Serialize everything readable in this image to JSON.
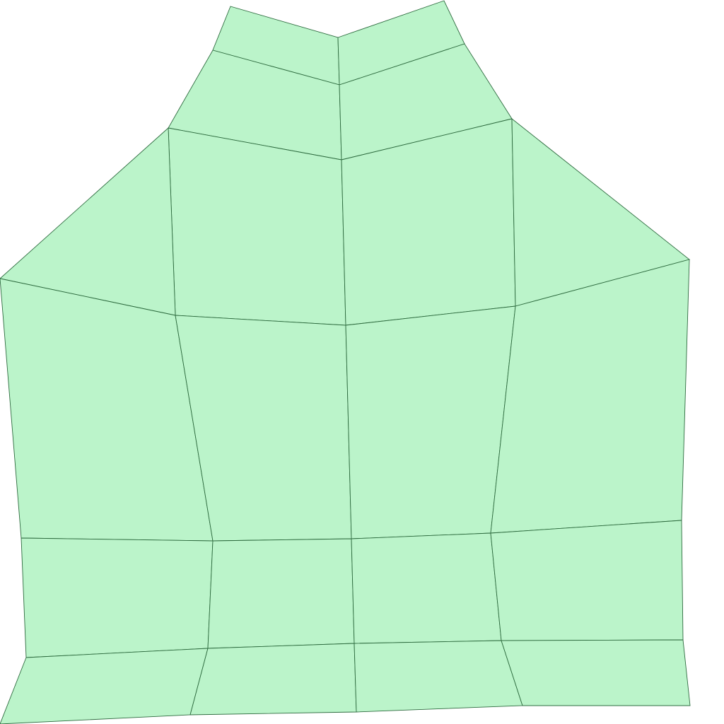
{
  "diagram": {
    "type": "quad-mesh",
    "fill_color": "#bbf4ca",
    "stroke_color": "#2e6b3f",
    "background_color": "#ffffff",
    "rows": 6,
    "row_cells": [
      2,
      2,
      4,
      4,
      4,
      4
    ]
  }
}
